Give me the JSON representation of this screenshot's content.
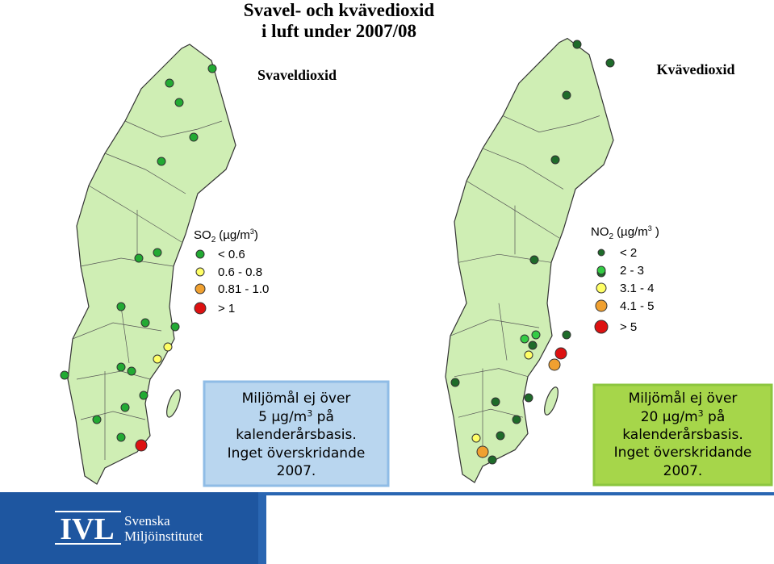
{
  "header": {
    "title_lines": [
      "Svavel- och kvävedioxid",
      "i luft under 2007/08"
    ]
  },
  "maps": [
    {
      "title": "Svaveldioxid",
      "legend": {
        "title": {
          "substance": "SO",
          "subscript": "2",
          "unit": "(µg/m",
          "superscript": "3",
          "close": ")"
        },
        "items": [
          {
            "label": "< 0.6",
            "color": "#22aa33"
          },
          {
            "label": "0.6 - 0.8",
            "color": "#ffff66"
          },
          {
            "label": "0.81 - 1.0",
            "color": "#f0a030"
          },
          {
            "label": "> 1",
            "color": "#dd1111"
          }
        ]
      },
      "note": {
        "lines": [
          "Miljömål ej över",
          "5 µg/m",
          "3",
          " på",
          "kalenderårsbasis.",
          "Inget överskridande",
          "2007."
        ]
      }
    },
    {
      "title": "Kvävedioxid",
      "legend": {
        "title": {
          "substance": "NO",
          "subscript": "2",
          "unit": "(µg/m",
          "superscript": "3",
          "close": " )"
        },
        "items": [
          {
            "label": "< 2",
            "color": "#1e6b2a"
          },
          {
            "label": "2 - 3",
            "color": "#33cc44"
          },
          {
            "label": "3.1 - 4",
            "color": "#ffff66"
          },
          {
            "label": "4.1 - 5",
            "color": "#f0a030"
          },
          {
            "label": "> 5",
            "color": "#dd1111"
          }
        ]
      },
      "note": {
        "lines": [
          "Miljömål ej över",
          "20 µg/m",
          "3",
          " på",
          "kalenderårsbasis.",
          "Inget överskridande",
          "2007."
        ]
      }
    }
  ],
  "footer": {
    "logo": "IVL",
    "org_lines": [
      "Svenska",
      "Miljöinstitutet"
    ]
  }
}
